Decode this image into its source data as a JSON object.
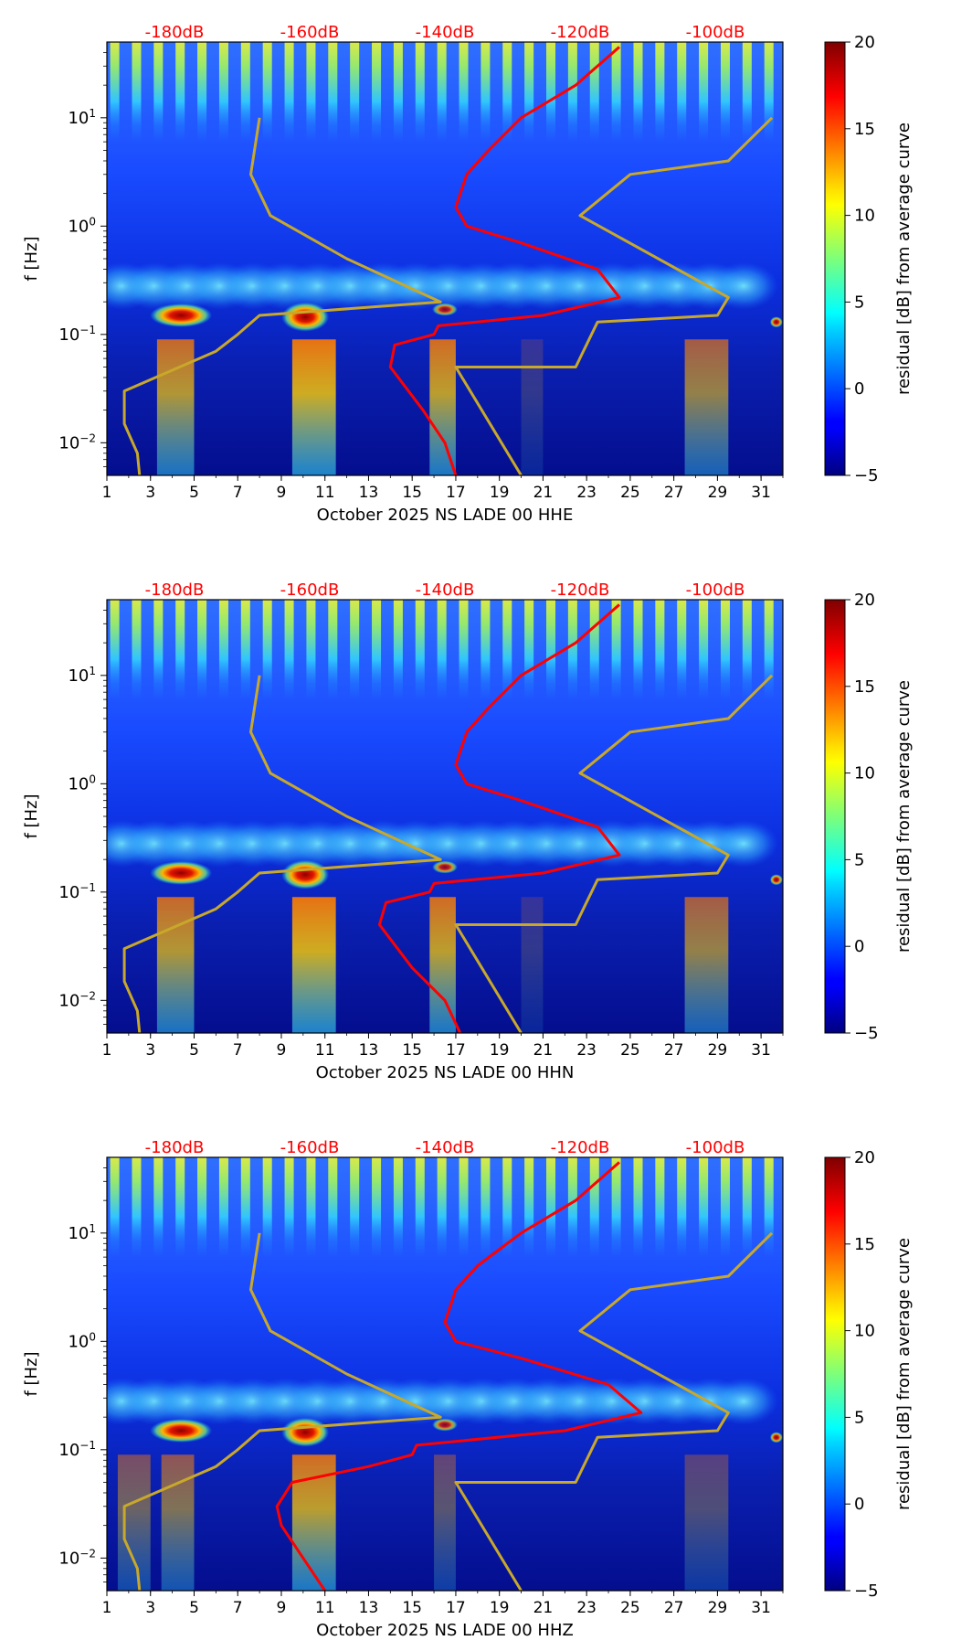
{
  "chart_data": [
    {
      "type": "heatmap",
      "title": "",
      "xlabel": "October 2025 NS LADE 00 HHE",
      "ylabel": "f [Hz]",
      "x_ticks": [
        1,
        3,
        5,
        7,
        9,
        11,
        13,
        15,
        17,
        19,
        21,
        23,
        25,
        27,
        29,
        31
      ],
      "xlim": [
        1,
        32
      ],
      "y_ticks": [
        {
          "value": 0.01,
          "base": "10",
          "exp": "−2"
        },
        {
          "value": 0.1,
          "base": "10",
          "exp": "−1"
        },
        {
          "value": 1,
          "base": "10",
          "exp": "0"
        },
        {
          "value": 10,
          "base": "10",
          "exp": "1"
        }
      ],
      "ylim": [
        0.005,
        50
      ],
      "y_scale": "log",
      "top_db_labels": [
        "-180dB",
        "-160dB",
        "-140dB",
        "-120dB",
        "-100dB"
      ],
      "top_db_range": [
        -190,
        -90
      ],
      "colorbar": {
        "label": "residual [dB] from average curve",
        "ticks": [
          -5,
          0,
          5,
          10,
          15,
          20
        ],
        "range": [
          -5,
          20
        ]
      },
      "noise_model_lines_color": "#c8a82a",
      "average_curve_color": "#ff0000",
      "nlnm": {
        "x_days": [
          8.0,
          7.6,
          8.5,
          12.0,
          16.3,
          8.0,
          7.0,
          6.0,
          1.8,
          1.8,
          2.4,
          2.5
        ],
        "f_hz": [
          10,
          3,
          1.25,
          0.5,
          0.2,
          0.15,
          0.1,
          0.07,
          0.03,
          0.015,
          0.008,
          0.005
        ]
      },
      "nhnm": {
        "x_days": [
          31.5,
          29.5,
          25.0,
          22.7,
          29.5,
          29.0,
          23.5,
          22.5,
          17.0,
          20.0
        ],
        "f_hz": [
          10,
          4,
          3,
          1.25,
          0.22,
          0.15,
          0.13,
          0.05,
          0.05,
          0.005
        ]
      },
      "average_curve": {
        "x_days": [
          17.0,
          16.5,
          15.5,
          14.0,
          14.2,
          16.0,
          16.2,
          21.0,
          24.5,
          23.5,
          20.0,
          17.5,
          17.0,
          17.5,
          18.5,
          20.0,
          22.5,
          24.5
        ],
        "f_hz": [
          0.005,
          0.01,
          0.02,
          0.05,
          0.08,
          0.1,
          0.12,
          0.15,
          0.22,
          0.4,
          0.7,
          1.0,
          1.5,
          3.0,
          5.0,
          10,
          20,
          45
        ]
      }
    },
    {
      "type": "heatmap",
      "title": "",
      "xlabel": "October 2025 NS LADE 00 HHN",
      "ylabel": "f [Hz]",
      "x_ticks": [
        1,
        3,
        5,
        7,
        9,
        11,
        13,
        15,
        17,
        19,
        21,
        23,
        25,
        27,
        29,
        31
      ],
      "xlim": [
        1,
        32
      ],
      "y_ticks": [
        {
          "value": 0.01,
          "base": "10",
          "exp": "−2"
        },
        {
          "value": 0.1,
          "base": "10",
          "exp": "−1"
        },
        {
          "value": 1,
          "base": "10",
          "exp": "0"
        },
        {
          "value": 10,
          "base": "10",
          "exp": "1"
        }
      ],
      "ylim": [
        0.005,
        50
      ],
      "y_scale": "log",
      "top_db_labels": [
        "-180dB",
        "-160dB",
        "-140dB",
        "-120dB",
        "-100dB"
      ],
      "top_db_range": [
        -190,
        -90
      ],
      "colorbar": {
        "label": "residual [dB] from average curve",
        "ticks": [
          -5,
          0,
          5,
          10,
          15,
          20
        ],
        "range": [
          -5,
          20
        ]
      },
      "noise_model_lines_color": "#c8a82a",
      "average_curve_color": "#ff0000",
      "nlnm": {
        "x_days": [
          8.0,
          7.6,
          8.5,
          12.0,
          16.3,
          8.0,
          7.0,
          6.0,
          1.8,
          1.8,
          2.4,
          2.5
        ],
        "f_hz": [
          10,
          3,
          1.25,
          0.5,
          0.2,
          0.15,
          0.1,
          0.07,
          0.03,
          0.015,
          0.008,
          0.005
        ]
      },
      "nhnm": {
        "x_days": [
          31.5,
          29.5,
          25.0,
          22.7,
          29.5,
          29.0,
          23.5,
          22.5,
          17.0,
          20.0
        ],
        "f_hz": [
          10,
          4,
          3,
          1.25,
          0.22,
          0.15,
          0.13,
          0.05,
          0.05,
          0.005
        ]
      },
      "average_curve": {
        "x_days": [
          17.2,
          16.5,
          15.0,
          13.5,
          13.8,
          15.8,
          16.0,
          21.0,
          24.5,
          23.5,
          20.0,
          17.5,
          17.0,
          17.5,
          18.5,
          20.0,
          22.5,
          24.5
        ],
        "f_hz": [
          0.005,
          0.01,
          0.02,
          0.05,
          0.08,
          0.1,
          0.12,
          0.15,
          0.22,
          0.4,
          0.7,
          1.0,
          1.5,
          3.0,
          5.0,
          10,
          20,
          45
        ]
      }
    },
    {
      "type": "heatmap",
      "title": "",
      "xlabel": "October 2025 NS LADE 00 HHZ",
      "ylabel": "f [Hz]",
      "x_ticks": [
        1,
        3,
        5,
        7,
        9,
        11,
        13,
        15,
        17,
        19,
        21,
        23,
        25,
        27,
        29,
        31
      ],
      "xlim": [
        1,
        32
      ],
      "y_ticks": [
        {
          "value": 0.01,
          "base": "10",
          "exp": "−2"
        },
        {
          "value": 0.1,
          "base": "10",
          "exp": "−1"
        },
        {
          "value": 1,
          "base": "10",
          "exp": "0"
        },
        {
          "value": 10,
          "base": "10",
          "exp": "1"
        }
      ],
      "ylim": [
        0.005,
        50
      ],
      "y_scale": "log",
      "top_db_labels": [
        "-180dB",
        "-160dB",
        "-140dB",
        "-120dB",
        "-100dB"
      ],
      "top_db_range": [
        -190,
        -90
      ],
      "colorbar": {
        "label": "residual [dB] from average curve",
        "ticks": [
          -5,
          0,
          5,
          10,
          15,
          20
        ],
        "range": [
          -5,
          20
        ]
      },
      "noise_model_lines_color": "#c8a82a",
      "average_curve_color": "#ff0000",
      "nlnm": {
        "x_days": [
          8.0,
          7.6,
          8.5,
          12.0,
          16.3,
          8.0,
          7.0,
          6.0,
          1.8,
          1.8,
          2.4,
          2.5
        ],
        "f_hz": [
          10,
          3,
          1.25,
          0.5,
          0.2,
          0.15,
          0.1,
          0.07,
          0.03,
          0.015,
          0.008,
          0.005
        ]
      },
      "nhnm": {
        "x_days": [
          31.5,
          29.5,
          25.0,
          22.7,
          29.5,
          29.0,
          23.5,
          22.5,
          17.0,
          20.0
        ],
        "f_hz": [
          10,
          4,
          3,
          1.25,
          0.22,
          0.15,
          0.13,
          0.05,
          0.05,
          0.005
        ]
      },
      "average_curve": {
        "x_days": [
          11.0,
          10.0,
          9.0,
          8.8,
          9.5,
          13.0,
          15.0,
          15.2,
          22.0,
          25.5,
          24.0,
          20.0,
          17.0,
          16.5,
          17.0,
          18.0,
          20.0,
          22.5,
          24.5
        ],
        "f_hz": [
          0.005,
          0.01,
          0.02,
          0.03,
          0.05,
          0.07,
          0.09,
          0.11,
          0.15,
          0.22,
          0.4,
          0.7,
          1.0,
          1.5,
          3.0,
          5.0,
          10,
          20,
          45
        ]
      }
    }
  ]
}
